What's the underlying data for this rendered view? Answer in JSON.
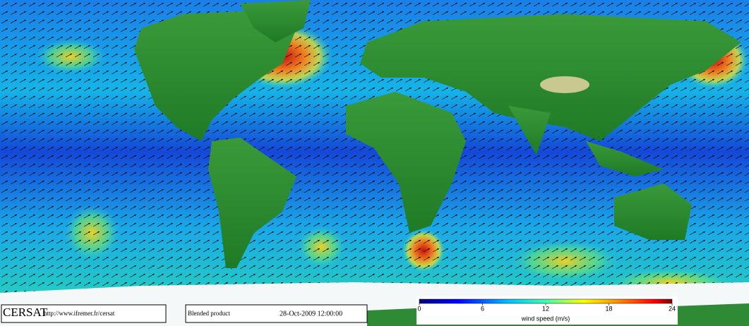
{
  "footer": {
    "logo": "CERSAT",
    "url": "http://www.ifremer.fr/cersat",
    "product": "Blended product",
    "date": "28-Oct-2009 12:00:00"
  },
  "colorbar": {
    "label": "wind speed (m/s)",
    "lim": [
      0,
      24
    ],
    "ticks": [
      0,
      6,
      12,
      18,
      24
    ]
  }
}
